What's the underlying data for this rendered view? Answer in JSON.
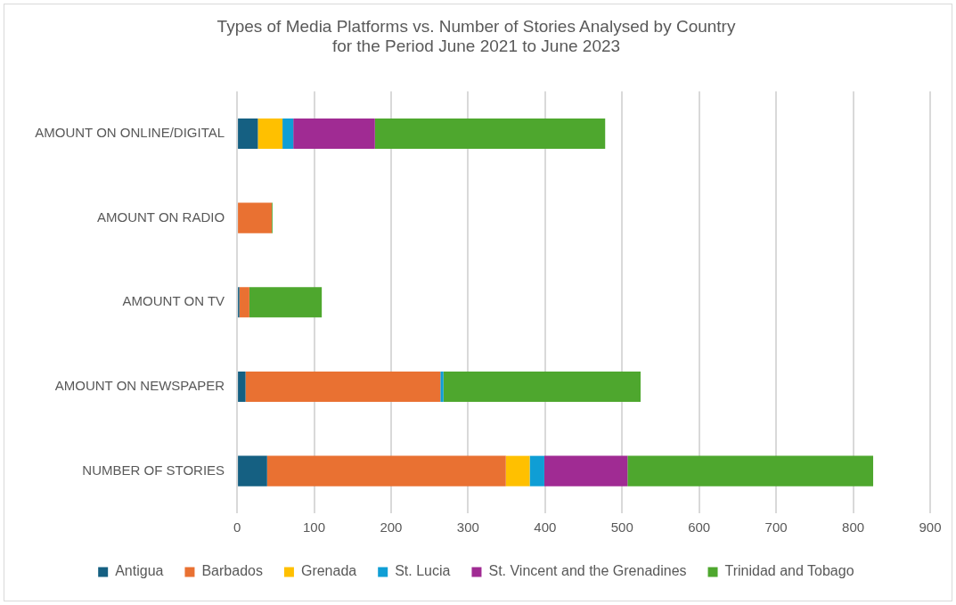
{
  "chart_data": {
    "type": "bar",
    "orientation": "horizontal",
    "stacked": true,
    "title": "Types of Media Platforms vs. Number of Stories Analysed by Country\nfor the Period June 2021 to June 2023",
    "categories": [
      "AMOUNT ON ONLINE/DIGITAL",
      "AMOUNT ON RADIO",
      "AMOUNT ON TV",
      "AMOUNT ON NEWSPAPER",
      "NUMBER OF STORIES"
    ],
    "series": [
      {
        "name": "Antigua",
        "color": "#156082",
        "values": [
          27,
          0,
          3,
          11,
          39
        ]
      },
      {
        "name": "Barbados",
        "color": "#e97132",
        "values": [
          0,
          45,
          13,
          253,
          310
        ]
      },
      {
        "name": "Grenada",
        "color": "#ffc000",
        "values": [
          32,
          0,
          0,
          0,
          31
        ]
      },
      {
        "name": "St. Lucia",
        "color": "#0f9ed5",
        "values": [
          14,
          0,
          0,
          4,
          19
        ]
      },
      {
        "name": "St. Vincent and the Grenadines",
        "color": "#a02b93",
        "values": [
          106,
          0,
          0,
          0,
          108
        ]
      },
      {
        "name": "Trinidad and Tobago",
        "color": "#4ea72e",
        "values": [
          299,
          1,
          94,
          256,
          319
        ]
      }
    ],
    "xlim": [
      0,
      900
    ],
    "xticks": [
      0,
      100,
      200,
      300,
      400,
      500,
      600,
      700,
      800,
      900
    ],
    "grid": "x",
    "legend": "bottom"
  }
}
